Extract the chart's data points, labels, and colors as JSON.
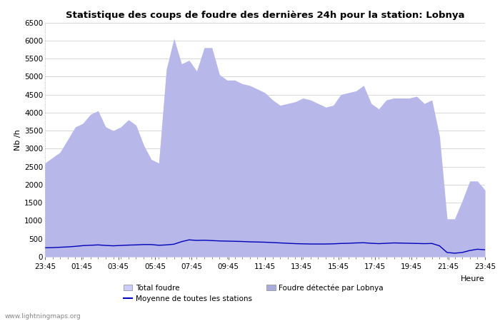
{
  "title": "Statistique des coups de foudre des dernières 24h pour la station: Lobnya",
  "xlabel": "Heure",
  "ylabel": "Nb /h",
  "ylim": [
    0,
    6500
  ],
  "yticks": [
    0,
    500,
    1000,
    1500,
    2000,
    2500,
    3000,
    3500,
    4000,
    4500,
    5000,
    5500,
    6000,
    6500
  ],
  "xtick_labels": [
    "23:45",
    "01:45",
    "03:45",
    "05:45",
    "07:45",
    "09:45",
    "11:45",
    "13:45",
    "15:45",
    "17:45",
    "19:45",
    "21:45",
    "23:45"
  ],
  "bg_color": "#ffffff",
  "plot_bg_color": "#ffffff",
  "grid_color": "#c8c8c8",
  "total_foudre_color": "#ccccff",
  "lobnya_color": "#aaaadd",
  "line_color": "#0000bb",
  "watermark": "www.lightningmaps.org",
  "total_foudre": [
    2600,
    2750,
    2900,
    3250,
    3600,
    3700,
    3950,
    4050,
    3600,
    3500,
    3600,
    3800,
    3650,
    3100,
    2700,
    2600,
    5200,
    6050,
    5350,
    5450,
    5150,
    5800,
    5800,
    5050,
    4900,
    4900,
    4800,
    4750,
    4650,
    4550,
    4350,
    4200,
    4250,
    4300,
    4400,
    4350,
    4250,
    4150,
    4200,
    4500,
    4550,
    4600,
    4750,
    4250,
    4100,
    4350,
    4400,
    4400,
    4400,
    4450,
    4250,
    4350,
    3350,
    1050,
    1050,
    1550,
    2100,
    2100,
    1850
  ],
  "lobnya_foudre": [
    2600,
    2750,
    2900,
    3250,
    3600,
    3700,
    3950,
    4050,
    3600,
    3500,
    3600,
    3800,
    3650,
    3100,
    2700,
    2600,
    5200,
    6050,
    5350,
    5450,
    5150,
    5800,
    5800,
    5050,
    4900,
    4900,
    4800,
    4750,
    4650,
    4550,
    4350,
    4200,
    4250,
    4300,
    4400,
    4350,
    4250,
    4150,
    4200,
    4500,
    4550,
    4600,
    4750,
    4250,
    4100,
    4350,
    4400,
    4400,
    4400,
    4450,
    4250,
    4350,
    3350,
    1050,
    1050,
    1550,
    2100,
    2100,
    1850
  ],
  "avg_line": [
    250,
    255,
    265,
    275,
    290,
    310,
    320,
    330,
    315,
    305,
    315,
    325,
    330,
    340,
    340,
    320,
    330,
    350,
    420,
    470,
    455,
    460,
    450,
    440,
    435,
    430,
    425,
    415,
    410,
    405,
    395,
    385,
    375,
    365,
    360,
    355,
    355,
    355,
    360,
    370,
    375,
    385,
    390,
    375,
    365,
    375,
    385,
    380,
    375,
    370,
    365,
    370,
    305,
    120,
    100,
    120,
    175,
    210,
    195
  ]
}
